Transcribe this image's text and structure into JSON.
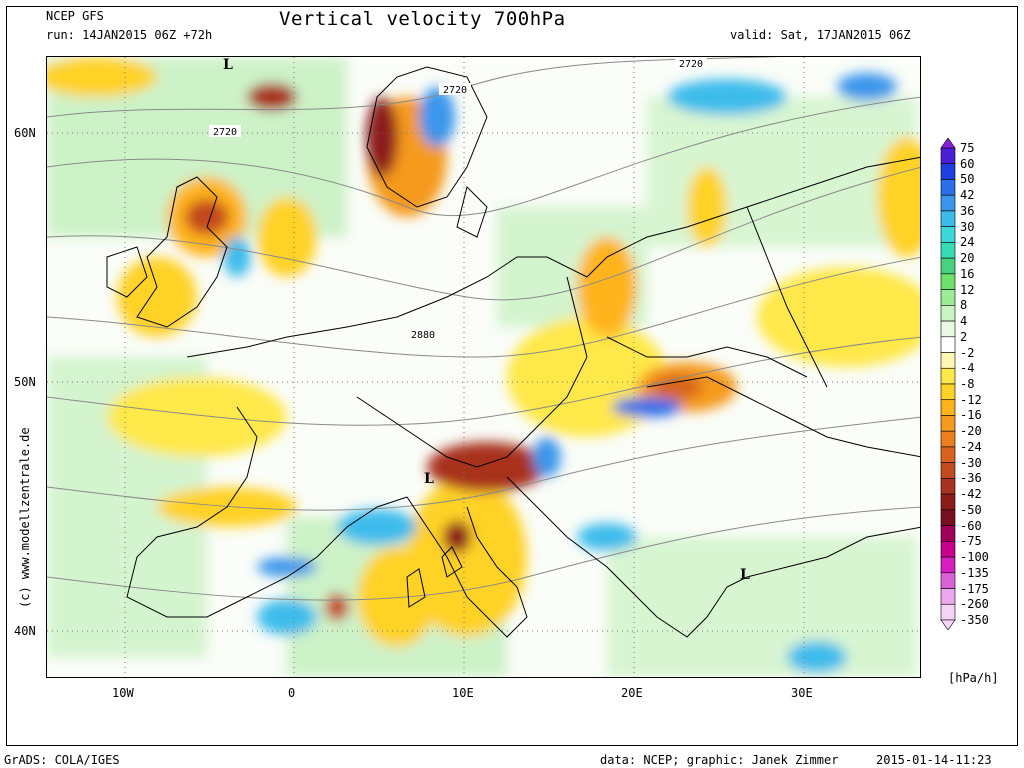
{
  "header": {
    "model": "NCEP GFS",
    "run": "run: 14JAN2015 06Z +72h",
    "title": "Vertical velocity 700hPa",
    "valid": "valid: Sat, 17JAN2015 06Z"
  },
  "axes": {
    "lat_labels": [
      "60N",
      "50N",
      "40N"
    ],
    "lon_labels": [
      "10W",
      "0",
      "10E",
      "20E",
      "30E"
    ]
  },
  "contour_labels": [
    "2720",
    "2720",
    "2720",
    "2880"
  ],
  "pressure_markers": [
    "L",
    "L",
    "L"
  ],
  "legend": {
    "unit": "[hPa/h]",
    "levels": [
      "75",
      "60",
      "50",
      "42",
      "36",
      "30",
      "24",
      "20",
      "16",
      "12",
      "8",
      "4",
      "2",
      "-2",
      "-4",
      "-8",
      "-12",
      "-16",
      "-20",
      "-24",
      "-30",
      "-36",
      "-42",
      "-50",
      "-60",
      "-75",
      "-100",
      "-135",
      "-175",
      "-260",
      "-350"
    ],
    "colors": [
      "#8a1fd8",
      "#4b1fd8",
      "#1f3fe0",
      "#2a6ee8",
      "#3a96ec",
      "#3cbcec",
      "#3cd8d8",
      "#36dcb4",
      "#46d27e",
      "#6ee06e",
      "#9cec96",
      "#c8f4c0",
      "#e8fae4",
      "#ffffff",
      "#fff8b4",
      "#ffe84a",
      "#ffd226",
      "#ffb41c",
      "#f59a1e",
      "#ec7e1e",
      "#d8621e",
      "#c24a1e",
      "#a8321e",
      "#8c1c1a",
      "#7a0f1f",
      "#a0005a",
      "#c8008c",
      "#d81ec0",
      "#dc60d8",
      "#eca8ec",
      "#f6d4f6"
    ]
  },
  "footer": {
    "left": "GrADS: COLA/IGES",
    "center": "data: NCEP; graphic: Janek Zimmer",
    "right": "2015-01-14-11:23"
  },
  "credit": "(c) www.modellzentrale.de"
}
